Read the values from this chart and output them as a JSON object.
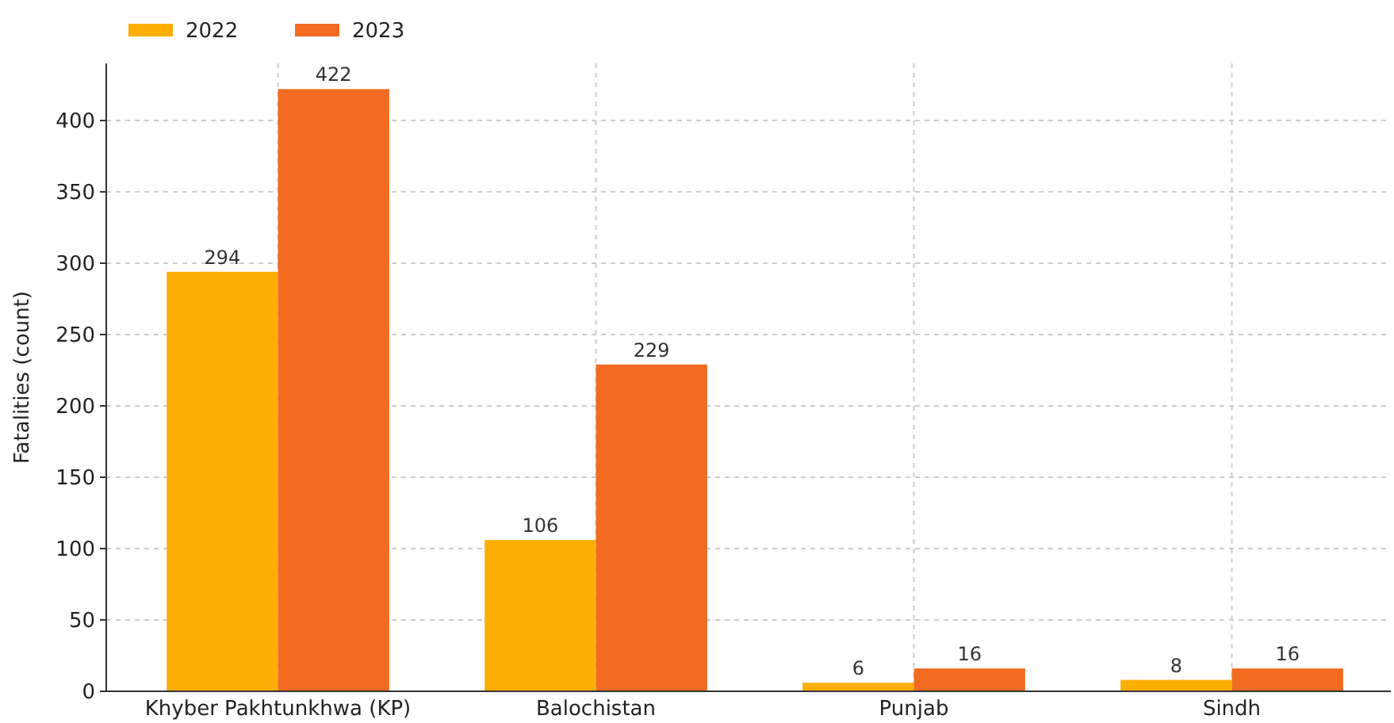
{
  "chart_data": {
    "type": "bar",
    "ylabel": "Fatalities (count)",
    "categories": [
      "Khyber Pakhtunkhwa (KP)",
      "Balochistan",
      "Punjab",
      "Sindh"
    ],
    "series": [
      {
        "name": "2022",
        "color": "#fcae05",
        "values": [
          294,
          106,
          6,
          8
        ]
      },
      {
        "name": "2023",
        "color": "#f26b21",
        "values": [
          422,
          229,
          16,
          16
        ]
      }
    ],
    "ylim": [
      0,
      440
    ],
    "yticks": [
      0,
      50,
      100,
      150,
      200,
      250,
      300,
      350,
      400
    ],
    "grid": true,
    "legend": "top left",
    "data_labels": true
  }
}
